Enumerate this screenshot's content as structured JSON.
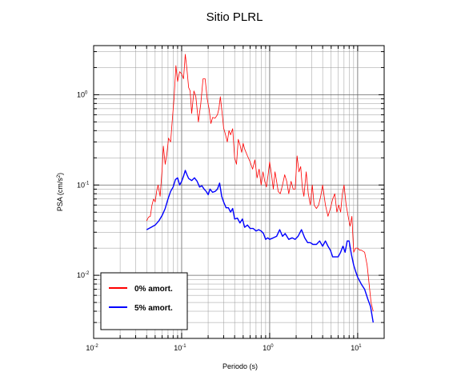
{
  "chart_data": {
    "type": "line",
    "title": "Sitio PLRL",
    "xlabel": "Periodo (s)",
    "ylabel_prefix": "PSA (cm/s",
    "ylabel_sup": "2",
    "ylabel_suffix": ")",
    "xscale": "log",
    "yscale": "log",
    "xlim": [
      0.01,
      20
    ],
    "ylim": [
      0.002,
      3.5
    ],
    "grid": true,
    "legend_position": "bottom-left",
    "x_ticks": [
      {
        "base": "10",
        "exp": "-2"
      },
      {
        "base": "10",
        "exp": "-1"
      },
      {
        "base": "10",
        "exp": "0"
      },
      {
        "base": "10",
        "exp": "1"
      }
    ],
    "y_ticks": [
      {
        "base": "10",
        "exp": "-2"
      },
      {
        "base": "10",
        "exp": "-1"
      },
      {
        "base": "10",
        "exp": "0"
      }
    ],
    "series": [
      {
        "name": "0% amort.",
        "color": "#ff0000",
        "points": [
          [
            0.04,
            0.04
          ],
          [
            0.042,
            0.044
          ],
          [
            0.044,
            0.045
          ],
          [
            0.046,
            0.06
          ],
          [
            0.048,
            0.07
          ],
          [
            0.05,
            0.065
          ],
          [
            0.052,
            0.085
          ],
          [
            0.054,
            0.1
          ],
          [
            0.057,
            0.075
          ],
          [
            0.06,
            0.15
          ],
          [
            0.062,
            0.27
          ],
          [
            0.065,
            0.17
          ],
          [
            0.068,
            0.22
          ],
          [
            0.071,
            0.33
          ],
          [
            0.075,
            0.3
          ],
          [
            0.078,
            0.5
          ],
          [
            0.082,
            0.92
          ],
          [
            0.086,
            2.1
          ],
          [
            0.09,
            1.4
          ],
          [
            0.095,
            1.8
          ],
          [
            0.1,
            1.7
          ],
          [
            0.105,
            1.5
          ],
          [
            0.11,
            2.8
          ],
          [
            0.115,
            1.9
          ],
          [
            0.12,
            1.2
          ],
          [
            0.125,
            1.1
          ],
          [
            0.13,
            0.62
          ],
          [
            0.138,
            1.1
          ],
          [
            0.145,
            0.95
          ],
          [
            0.155,
            0.5
          ],
          [
            0.165,
            0.8
          ],
          [
            0.175,
            1.5
          ],
          [
            0.185,
            1.5
          ],
          [
            0.195,
            0.9
          ],
          [
            0.205,
            0.7
          ],
          [
            0.215,
            0.48
          ],
          [
            0.225,
            0.56
          ],
          [
            0.24,
            0.55
          ],
          [
            0.255,
            0.6
          ],
          [
            0.265,
            0.7
          ],
          [
            0.275,
            0.95
          ],
          [
            0.29,
            0.6
          ],
          [
            0.3,
            0.43
          ],
          [
            0.315,
            0.36
          ],
          [
            0.33,
            0.3
          ],
          [
            0.345,
            0.4
          ],
          [
            0.36,
            0.36
          ],
          [
            0.38,
            0.42
          ],
          [
            0.4,
            0.2
          ],
          [
            0.42,
            0.17
          ],
          [
            0.44,
            0.32
          ],
          [
            0.46,
            0.28
          ],
          [
            0.48,
            0.23
          ],
          [
            0.5,
            0.29
          ],
          [
            0.52,
            0.25
          ],
          [
            0.56,
            0.21
          ],
          [
            0.6,
            0.18
          ],
          [
            0.64,
            0.15
          ],
          [
            0.68,
            0.19
          ],
          [
            0.72,
            0.12
          ],
          [
            0.76,
            0.15
          ],
          [
            0.8,
            0.1
          ],
          [
            0.84,
            0.14
          ],
          [
            0.88,
            0.11
          ],
          [
            0.92,
            0.095
          ],
          [
            0.96,
            0.13
          ],
          [
            1.0,
            0.18
          ],
          [
            1.05,
            0.13
          ],
          [
            1.1,
            0.09
          ],
          [
            1.15,
            0.14
          ],
          [
            1.2,
            0.11
          ],
          [
            1.25,
            0.085
          ],
          [
            1.32,
            0.08
          ],
          [
            1.4,
            0.1
          ],
          [
            1.48,
            0.13
          ],
          [
            1.56,
            0.11
          ],
          [
            1.65,
            0.08
          ],
          [
            1.75,
            0.11
          ],
          [
            1.85,
            0.09
          ],
          [
            1.95,
            0.09
          ],
          [
            2.05,
            0.21
          ],
          [
            2.15,
            0.14
          ],
          [
            2.25,
            0.16
          ],
          [
            2.35,
            0.095
          ],
          [
            2.45,
            0.075
          ],
          [
            2.6,
            0.14
          ],
          [
            2.75,
            0.08
          ],
          [
            2.9,
            0.06
          ],
          [
            3.05,
            0.1
          ],
          [
            3.2,
            0.06
          ],
          [
            3.4,
            0.055
          ],
          [
            3.6,
            0.06
          ],
          [
            3.8,
            0.075
          ],
          [
            4.0,
            0.1
          ],
          [
            4.3,
            0.06
          ],
          [
            4.6,
            0.045
          ],
          [
            4.9,
            0.055
          ],
          [
            5.2,
            0.07
          ],
          [
            5.5,
            0.08
          ],
          [
            5.8,
            0.05
          ],
          [
            6.1,
            0.06
          ],
          [
            6.4,
            0.05
          ],
          [
            6.7,
            0.08
          ],
          [
            7.0,
            0.1
          ],
          [
            7.4,
            0.06
          ],
          [
            7.8,
            0.045
          ],
          [
            8.2,
            0.035
          ],
          [
            8.6,
            0.045
          ],
          [
            9.0,
            0.018
          ],
          [
            9.5,
            0.02
          ],
          [
            10.0,
            0.02
          ],
          [
            10.5,
            0.019
          ],
          [
            11.0,
            0.019
          ],
          [
            12.0,
            0.018
          ],
          [
            12.8,
            0.013
          ],
          [
            13.5,
            0.008
          ],
          [
            14.2,
            0.005
          ],
          [
            15.0,
            0.004
          ]
        ]
      },
      {
        "name": "5% amort.",
        "color": "#0000ff",
        "points": [
          [
            0.04,
            0.032
          ],
          [
            0.045,
            0.034
          ],
          [
            0.05,
            0.036
          ],
          [
            0.055,
            0.04
          ],
          [
            0.06,
            0.046
          ],
          [
            0.065,
            0.055
          ],
          [
            0.07,
            0.07
          ],
          [
            0.075,
            0.085
          ],
          [
            0.08,
            0.095
          ],
          [
            0.085,
            0.115
          ],
          [
            0.09,
            0.12
          ],
          [
            0.095,
            0.1
          ],
          [
            0.1,
            0.11
          ],
          [
            0.105,
            0.125
          ],
          [
            0.11,
            0.145
          ],
          [
            0.115,
            0.13
          ],
          [
            0.12,
            0.118
          ],
          [
            0.125,
            0.115
          ],
          [
            0.13,
            0.112
          ],
          [
            0.14,
            0.12
          ],
          [
            0.15,
            0.11
          ],
          [
            0.16,
            0.095
          ],
          [
            0.17,
            0.098
          ],
          [
            0.18,
            0.09
          ],
          [
            0.19,
            0.085
          ],
          [
            0.2,
            0.078
          ],
          [
            0.21,
            0.09
          ],
          [
            0.225,
            0.083
          ],
          [
            0.24,
            0.085
          ],
          [
            0.255,
            0.09
          ],
          [
            0.27,
            0.105
          ],
          [
            0.285,
            0.075
          ],
          [
            0.3,
            0.065
          ],
          [
            0.32,
            0.056
          ],
          [
            0.34,
            0.056
          ],
          [
            0.36,
            0.05
          ],
          [
            0.38,
            0.055
          ],
          [
            0.4,
            0.042
          ],
          [
            0.43,
            0.043
          ],
          [
            0.46,
            0.038
          ],
          [
            0.49,
            0.042
          ],
          [
            0.52,
            0.034
          ],
          [
            0.56,
            0.036
          ],
          [
            0.6,
            0.033
          ],
          [
            0.65,
            0.033
          ],
          [
            0.7,
            0.031
          ],
          [
            0.75,
            0.032
          ],
          [
            0.8,
            0.031
          ],
          [
            0.85,
            0.029
          ],
          [
            0.9,
            0.025
          ],
          [
            0.95,
            0.026
          ],
          [
            1.0,
            0.025
          ],
          [
            1.1,
            0.026
          ],
          [
            1.2,
            0.027
          ],
          [
            1.3,
            0.032
          ],
          [
            1.4,
            0.027
          ],
          [
            1.5,
            0.029
          ],
          [
            1.65,
            0.025
          ],
          [
            1.8,
            0.026
          ],
          [
            1.95,
            0.025
          ],
          [
            2.1,
            0.027
          ],
          [
            2.3,
            0.032
          ],
          [
            2.5,
            0.026
          ],
          [
            2.7,
            0.023
          ],
          [
            2.9,
            0.023
          ],
          [
            3.1,
            0.022
          ],
          [
            3.4,
            0.022
          ],
          [
            3.7,
            0.024
          ],
          [
            4.0,
            0.021
          ],
          [
            4.3,
            0.024
          ],
          [
            4.6,
            0.021
          ],
          [
            4.9,
            0.019
          ],
          [
            5.2,
            0.016
          ],
          [
            5.6,
            0.016
          ],
          [
            6.0,
            0.016
          ],
          [
            6.4,
            0.018
          ],
          [
            6.8,
            0.021
          ],
          [
            7.2,
            0.018
          ],
          [
            7.6,
            0.024
          ],
          [
            8.0,
            0.024
          ],
          [
            8.5,
            0.017
          ],
          [
            9.0,
            0.013
          ],
          [
            9.5,
            0.011
          ],
          [
            10.0,
            0.0095
          ],
          [
            11.0,
            0.008
          ],
          [
            12.0,
            0.007
          ],
          [
            13.0,
            0.0055
          ],
          [
            14.0,
            0.0045
          ],
          [
            15.0,
            0.003
          ]
        ]
      }
    ]
  }
}
